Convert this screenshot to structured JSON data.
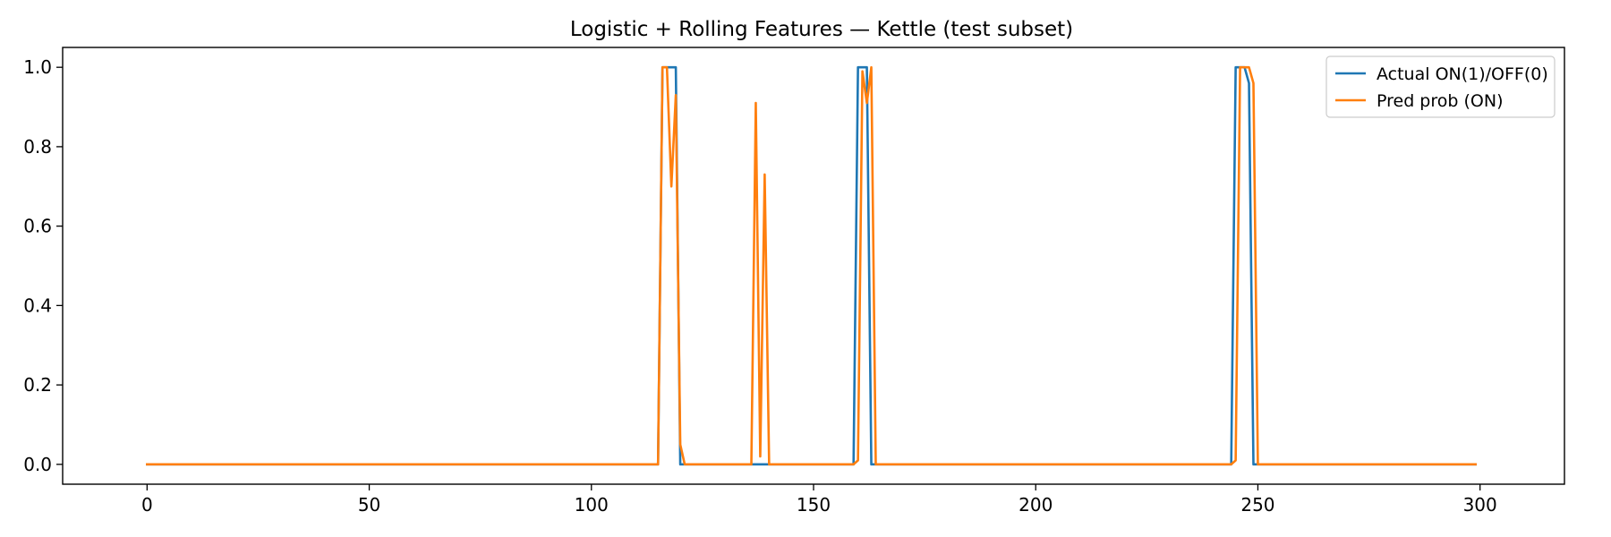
{
  "chart_data": {
    "type": "line",
    "title": "Logistic + Rolling Features — Kettle (test subset)",
    "xlabel": "",
    "ylabel": "",
    "xlim": [
      -19,
      319
    ],
    "ylim": [
      -0.05,
      1.05
    ],
    "x_ticks": [
      0,
      50,
      100,
      150,
      200,
      250,
      300
    ],
    "y_ticks": [
      0.0,
      0.2,
      0.4,
      0.6,
      0.8,
      1.0
    ],
    "x_tick_labels": [
      "0",
      "50",
      "100",
      "150",
      "200",
      "250",
      "300"
    ],
    "y_tick_labels": [
      "0.0",
      "0.2",
      "0.4",
      "0.6",
      "0.8",
      "1.0"
    ],
    "grid": false,
    "legend_position": "top-right",
    "series": [
      {
        "name": "Actual ON(1)/OFF(0)",
        "color": "#1f77b4",
        "points": [
          [
            0,
            0
          ],
          [
            115,
            0
          ],
          [
            116,
            1
          ],
          [
            119,
            1
          ],
          [
            120,
            0
          ],
          [
            159,
            0
          ],
          [
            160,
            1
          ],
          [
            162,
            1
          ],
          [
            163,
            0
          ],
          [
            244,
            0
          ],
          [
            245,
            1
          ],
          [
            247,
            1
          ],
          [
            248,
            0.96
          ],
          [
            249,
            0
          ],
          [
            299,
            0
          ]
        ]
      },
      {
        "name": "Pred prob (ON)",
        "color": "#ff7f0e",
        "points": [
          [
            0,
            0
          ],
          [
            115,
            0
          ],
          [
            116,
            1
          ],
          [
            117,
            1
          ],
          [
            118,
            0.7
          ],
          [
            119,
            0.93
          ],
          [
            120,
            0.05
          ],
          [
            121,
            0
          ],
          [
            136,
            0
          ],
          [
            137,
            0.91
          ],
          [
            138,
            0.02
          ],
          [
            139,
            0.73
          ],
          [
            140,
            0
          ],
          [
            159,
            0
          ],
          [
            160,
            0.01
          ],
          [
            161,
            0.99
          ],
          [
            162,
            0.91
          ],
          [
            163,
            1.0
          ],
          [
            164,
            0
          ],
          [
            244,
            0
          ],
          [
            245,
            0.01
          ],
          [
            246,
            1
          ],
          [
            248,
            1
          ],
          [
            249,
            0.96
          ],
          [
            250,
            0
          ],
          [
            299,
            0
          ]
        ]
      }
    ]
  }
}
